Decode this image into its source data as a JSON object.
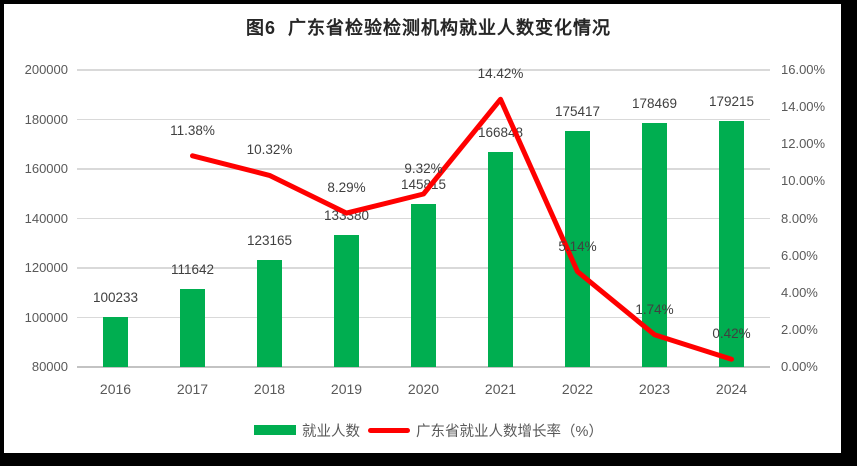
{
  "title": "图6  广东省检验检测机构就业人数变化情况",
  "legend": {
    "items": [
      {
        "label": "就业人数",
        "swatch": "bar",
        "color": "#00AE50"
      },
      {
        "label": "广东省就业人数增长率（%）",
        "swatch": "line",
        "color": "#FF0000"
      }
    ]
  },
  "colors": {
    "bar": "#00AE50",
    "line": "#FF0000",
    "gridline": "#D9D9D9",
    "axis_text": "#595959",
    "label_text": "#404040",
    "frame": "#000000"
  },
  "chart_data": {
    "type": "bar",
    "subtype": "combo-bar-line",
    "title": "图6  广东省检验检测机构就业人数变化情况",
    "categories": [
      "2016",
      "2017",
      "2018",
      "2019",
      "2020",
      "2021",
      "2022",
      "2023",
      "2024"
    ],
    "series": [
      {
        "name": "就业人数",
        "type": "bar",
        "axis": "left",
        "color": "#00AE50",
        "values": [
          100233,
          111642,
          123165,
          133380,
          145815,
          166848,
          175417,
          178469,
          179215
        ],
        "labels": [
          "100233",
          "111642",
          "123165",
          "133380",
          "145815",
          "166848",
          "175417",
          "178469",
          "179215"
        ]
      },
      {
        "name": "广东省就业人数增长率（%）",
        "type": "line",
        "axis": "right",
        "color": "#FF0000",
        "values": [
          null,
          11.38,
          10.32,
          8.29,
          9.32,
          14.42,
          5.14,
          1.74,
          0.42
        ],
        "labels": [
          null,
          "11.38%",
          "10.32%",
          "8.29%",
          "9.32%",
          "14.42%",
          "5.14%",
          "1.74%",
          "0.42%"
        ]
      }
    ],
    "left_axis": {
      "label": "",
      "min": 80000,
      "max": 200000,
      "step": 20000,
      "tick_labels": [
        "80000",
        "100000",
        "120000",
        "140000",
        "160000",
        "180000",
        "200000"
      ]
    },
    "right_axis": {
      "label": "",
      "min": 0,
      "max": 16,
      "step": 2,
      "tick_labels": [
        "0.00%",
        "2.00%",
        "4.00%",
        "6.00%",
        "8.00%",
        "10.00%",
        "12.00%",
        "14.00%",
        "16.00%"
      ]
    },
    "grid": true,
    "legend_position": "bottom"
  }
}
